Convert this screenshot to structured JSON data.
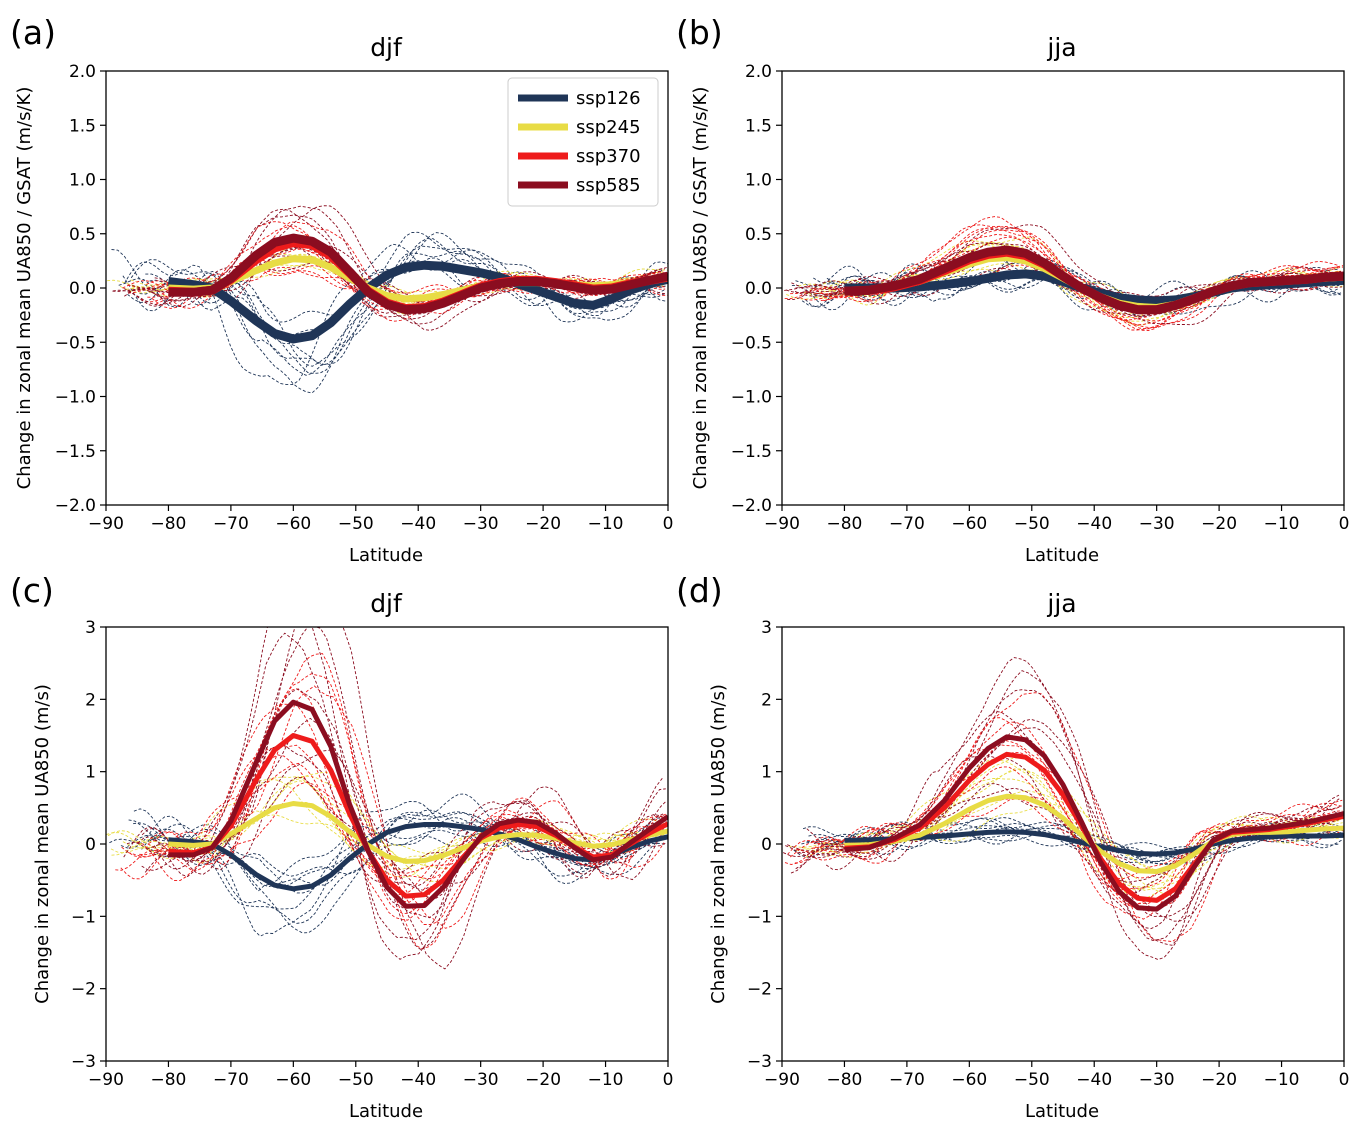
{
  "colors": {
    "ssp126": "#1f3557",
    "ssp245": "#e8dc45",
    "ssp370": "#ee1b1b",
    "ssp585": "#8b0d20"
  },
  "legend": [
    {
      "key": "ssp126",
      "label": "ssp126"
    },
    {
      "key": "ssp245",
      "label": "ssp245"
    },
    {
      "key": "ssp370",
      "label": "ssp370"
    },
    {
      "key": "ssp585",
      "label": "ssp585"
    }
  ],
  "chart_data": [
    {
      "panel": "(a)",
      "type": "line",
      "title": "djf",
      "xlabel": "Latitude",
      "ylabel": "Change in zonal mean UA850 / GSAT (m/s/K)",
      "xlim": [
        -90,
        0
      ],
      "ylim": [
        -2,
        2
      ],
      "xticks": [
        "−90",
        "−80",
        "−70",
        "−60",
        "−50",
        "−40",
        "−30",
        "−20",
        "−10",
        "0"
      ],
      "yticks": [
        "2.0",
        "1.5",
        "1.0",
        "0.5",
        "0.0",
        "−0.5",
        "−1.0",
        "−1.5",
        "−2.0"
      ],
      "legend_position": "top-right",
      "spread": {
        "ssp126": 0.9,
        "ssp245": 0.35,
        "ssp370": 0.5,
        "ssp585": 0.5
      },
      "series": [
        {
          "name": "ssp126",
          "x": [
            -80,
            -76,
            -73,
            -70,
            -66,
            -63,
            -60,
            -57,
            -54,
            -51,
            -48,
            -45,
            -42,
            -39,
            -36,
            -33,
            -30,
            -27,
            -24,
            -21,
            -18,
            -15,
            -12,
            -9,
            -6,
            -3,
            0
          ],
          "y": [
            0.06,
            0.03,
            0.0,
            -0.12,
            -0.3,
            -0.42,
            -0.47,
            -0.44,
            -0.32,
            -0.15,
            0.0,
            0.12,
            0.19,
            0.21,
            0.2,
            0.17,
            0.14,
            0.1,
            0.04,
            -0.02,
            -0.08,
            -0.14,
            -0.16,
            -0.1,
            -0.02,
            0.04,
            0.08
          ]
        },
        {
          "name": "ssp245",
          "x": [
            -80,
            -76,
            -73,
            -70,
            -66,
            -63,
            -60,
            -57,
            -54,
            -51,
            -48,
            -45,
            -42,
            -39,
            -36,
            -33,
            -30,
            -27,
            -24,
            -21,
            -18,
            -15,
            -12,
            -9,
            -6,
            -3,
            0
          ],
          "y": [
            0.0,
            -0.01,
            0.0,
            0.06,
            0.16,
            0.23,
            0.27,
            0.26,
            0.19,
            0.09,
            0.0,
            -0.07,
            -0.1,
            -0.09,
            -0.06,
            -0.02,
            0.02,
            0.04,
            0.05,
            0.05,
            0.04,
            0.03,
            0.02,
            0.03,
            0.05,
            0.07,
            0.09
          ]
        },
        {
          "name": "ssp370",
          "x": [
            -80,
            -76,
            -73,
            -70,
            -66,
            -63,
            -60,
            -57,
            -54,
            -51,
            -48,
            -45,
            -42,
            -39,
            -36,
            -33,
            -30,
            -27,
            -24,
            -21,
            -18,
            -15,
            -12,
            -9,
            -6,
            -3,
            0
          ],
          "y": [
            -0.03,
            -0.04,
            -0.02,
            0.08,
            0.26,
            0.37,
            0.42,
            0.4,
            0.3,
            0.14,
            -0.03,
            -0.14,
            -0.19,
            -0.18,
            -0.13,
            -0.06,
            0.01,
            0.05,
            0.07,
            0.07,
            0.05,
            0.02,
            -0.01,
            0.0,
            0.04,
            0.07,
            0.1
          ]
        },
        {
          "name": "ssp585",
          "x": [
            -80,
            -76,
            -73,
            -70,
            -66,
            -63,
            -60,
            -57,
            -54,
            -51,
            -48,
            -45,
            -42,
            -39,
            -36,
            -33,
            -30,
            -27,
            -24,
            -21,
            -18,
            -15,
            -12,
            -9,
            -6,
            -3,
            0
          ],
          "y": [
            -0.04,
            -0.04,
            -0.02,
            0.09,
            0.3,
            0.42,
            0.46,
            0.43,
            0.33,
            0.15,
            -0.04,
            -0.15,
            -0.2,
            -0.19,
            -0.14,
            -0.07,
            0.0,
            0.04,
            0.06,
            0.06,
            0.04,
            0.01,
            -0.02,
            -0.01,
            0.03,
            0.07,
            0.11
          ]
        }
      ]
    },
    {
      "panel": "(b)",
      "type": "line",
      "title": "jja",
      "xlabel": "Latitude",
      "ylabel": "Change in zonal mean UA850 / GSAT (m/s/K)",
      "xlim": [
        -90,
        0
      ],
      "ylim": [
        -2,
        2
      ],
      "xticks": [
        "−90",
        "−80",
        "−70",
        "−60",
        "−50",
        "−40",
        "−30",
        "−20",
        "−10",
        "0"
      ],
      "yticks": [
        "2.0",
        "1.5",
        "1.0",
        "0.5",
        "0.0",
        "−0.5",
        "−1.0",
        "−1.5",
        "−2.0"
      ],
      "spread": {
        "ssp126": 0.7,
        "ssp245": 0.45,
        "ssp370": 0.35,
        "ssp585": 0.35
      },
      "series": [
        {
          "name": "ssp126",
          "x": [
            -80,
            -76,
            -72,
            -68,
            -64,
            -60,
            -57,
            -54,
            -51,
            -48,
            -45,
            -42,
            -39,
            -36,
            -33,
            -30,
            -27,
            -24,
            -21,
            -18,
            -15,
            -12,
            -9,
            -6,
            -3,
            0
          ],
          "y": [
            0.0,
            0.0,
            0.0,
            0.01,
            0.03,
            0.06,
            0.09,
            0.12,
            0.13,
            0.11,
            0.06,
            0.0,
            -0.05,
            -0.09,
            -0.11,
            -0.12,
            -0.11,
            -0.08,
            -0.04,
            0.0,
            0.02,
            0.03,
            0.04,
            0.05,
            0.06,
            0.07
          ]
        },
        {
          "name": "ssp245",
          "x": [
            -80,
            -76,
            -72,
            -68,
            -64,
            -60,
            -57,
            -54,
            -51,
            -48,
            -45,
            -42,
            -39,
            -36,
            -33,
            -30,
            -27,
            -24,
            -21,
            -18,
            -15,
            -12,
            -9,
            -6,
            -3,
            0
          ],
          "y": [
            -0.03,
            -0.02,
            0.01,
            0.06,
            0.14,
            0.22,
            0.27,
            0.28,
            0.25,
            0.18,
            0.09,
            0.0,
            -0.08,
            -0.14,
            -0.17,
            -0.18,
            -0.15,
            -0.09,
            -0.03,
            0.02,
            0.05,
            0.06,
            0.07,
            0.08,
            0.09,
            0.1
          ]
        },
        {
          "name": "ssp370",
          "x": [
            -80,
            -76,
            -72,
            -68,
            -64,
            -60,
            -57,
            -54,
            -51,
            -48,
            -45,
            -42,
            -39,
            -36,
            -33,
            -30,
            -27,
            -24,
            -21,
            -18,
            -15,
            -12,
            -9,
            -6,
            -3,
            0
          ],
          "y": [
            -0.03,
            -0.02,
            0.01,
            0.07,
            0.16,
            0.26,
            0.31,
            0.33,
            0.3,
            0.22,
            0.11,
            0.0,
            -0.09,
            -0.16,
            -0.2,
            -0.2,
            -0.16,
            -0.1,
            -0.03,
            0.02,
            0.05,
            0.06,
            0.07,
            0.08,
            0.1,
            0.11
          ]
        },
        {
          "name": "ssp585",
          "x": [
            -80,
            -76,
            -72,
            -68,
            -64,
            -60,
            -57,
            -54,
            -51,
            -48,
            -45,
            -42,
            -39,
            -36,
            -33,
            -30,
            -27,
            -24,
            -21,
            -18,
            -15,
            -12,
            -9,
            -6,
            -3,
            0
          ],
          "y": [
            -0.03,
            -0.02,
            0.02,
            0.08,
            0.18,
            0.28,
            0.33,
            0.35,
            0.32,
            0.23,
            0.11,
            0.0,
            -0.09,
            -0.16,
            -0.2,
            -0.2,
            -0.16,
            -0.1,
            -0.03,
            0.02,
            0.05,
            0.06,
            0.07,
            0.08,
            0.1,
            0.11
          ]
        }
      ]
    },
    {
      "panel": "(c)",
      "type": "line",
      "title": "djf",
      "xlabel": "Latitude",
      "ylabel": "Change in zonal mean UA850 (m/s)",
      "xlim": [
        -90,
        0
      ],
      "ylim": [
        -3,
        3
      ],
      "xticks": [
        "−90",
        "−80",
        "−70",
        "−60",
        "−50",
        "−40",
        "−30",
        "−20",
        "−10",
        "0"
      ],
      "yticks": [
        "3",
        "2",
        "1",
        "0",
        "−1",
        "−2",
        "−3"
      ],
      "spread": {
        "ssp126": 1.2,
        "ssp245": 0.7,
        "ssp370": 1.1,
        "ssp585": 1.1
      },
      "series": [
        {
          "name": "ssp126",
          "x": [
            -80,
            -76,
            -73,
            -70,
            -66,
            -63,
            -60,
            -57,
            -54,
            -51,
            -48,
            -45,
            -42,
            -39,
            -36,
            -33,
            -30,
            -27,
            -24,
            -21,
            -18,
            -15,
            -12,
            -9,
            -6,
            -3,
            0
          ],
          "y": [
            0.06,
            0.03,
            0.0,
            -0.15,
            -0.42,
            -0.57,
            -0.62,
            -0.58,
            -0.43,
            -0.2,
            0.0,
            0.16,
            0.24,
            0.27,
            0.27,
            0.24,
            0.2,
            0.14,
            0.06,
            -0.04,
            -0.13,
            -0.2,
            -0.22,
            -0.15,
            -0.05,
            0.04,
            0.1
          ]
        },
        {
          "name": "ssp245",
          "x": [
            -80,
            -76,
            -73,
            -70,
            -66,
            -63,
            -60,
            -57,
            -54,
            -51,
            -48,
            -45,
            -42,
            -39,
            -36,
            -33,
            -30,
            -27,
            -24,
            -21,
            -18,
            -15,
            -12,
            -9,
            -6,
            -3,
            0
          ],
          "y": [
            0.0,
            -0.02,
            0.0,
            0.14,
            0.35,
            0.5,
            0.56,
            0.53,
            0.38,
            0.17,
            -0.02,
            -0.17,
            -0.24,
            -0.23,
            -0.16,
            -0.06,
            0.04,
            0.1,
            0.13,
            0.12,
            0.08,
            0.02,
            -0.03,
            -0.01,
            0.06,
            0.12,
            0.18
          ]
        },
        {
          "name": "ssp370",
          "x": [
            -80,
            -76,
            -73,
            -70,
            -66,
            -63,
            -60,
            -57,
            -54,
            -51,
            -48,
            -45,
            -42,
            -39,
            -36,
            -33,
            -30,
            -27,
            -24,
            -21,
            -18,
            -15,
            -12,
            -9,
            -6,
            -3,
            0
          ],
          "y": [
            -0.1,
            -0.12,
            -0.05,
            0.25,
            0.88,
            1.3,
            1.5,
            1.42,
            1.02,
            0.42,
            -0.1,
            -0.5,
            -0.72,
            -0.7,
            -0.5,
            -0.2,
            0.08,
            0.22,
            0.27,
            0.24,
            0.12,
            -0.04,
            -0.18,
            -0.15,
            0.0,
            0.15,
            0.28
          ]
        },
        {
          "name": "ssp585",
          "x": [
            -80,
            -76,
            -73,
            -70,
            -66,
            -63,
            -60,
            -57,
            -54,
            -51,
            -48,
            -45,
            -42,
            -39,
            -36,
            -33,
            -30,
            -27,
            -24,
            -21,
            -18,
            -15,
            -12,
            -9,
            -6,
            -3,
            0
          ],
          "y": [
            -0.15,
            -0.15,
            -0.05,
            0.32,
            1.12,
            1.7,
            1.96,
            1.86,
            1.35,
            0.55,
            -0.1,
            -0.6,
            -0.86,
            -0.85,
            -0.6,
            -0.24,
            0.1,
            0.28,
            0.33,
            0.3,
            0.15,
            -0.05,
            -0.22,
            -0.18,
            0.02,
            0.2,
            0.38
          ]
        }
      ]
    },
    {
      "panel": "(d)",
      "type": "line",
      "title": "jja",
      "xlabel": "Latitude",
      "ylabel": "Change in zonal mean UA850 (m/s)",
      "xlim": [
        -90,
        0
      ],
      "ylim": [
        -3,
        3
      ],
      "xticks": [
        "−90",
        "−80",
        "−70",
        "−60",
        "−50",
        "−40",
        "−30",
        "−20",
        "−10",
        "0"
      ],
      "yticks": [
        "3",
        "2",
        "1",
        "0",
        "−1",
        "−2",
        "−3"
      ],
      "spread": {
        "ssp126": 0.7,
        "ssp245": 0.6,
        "ssp370": 0.9,
        "ssp585": 0.9
      },
      "series": [
        {
          "name": "ssp126",
          "x": [
            -80,
            -76,
            -72,
            -68,
            -64,
            -60,
            -57,
            -54,
            -51,
            -48,
            -45,
            -42,
            -39,
            -36,
            -33,
            -30,
            -27,
            -24,
            -21,
            -18,
            -15,
            -12,
            -9,
            -6,
            -3,
            0
          ],
          "y": [
            0.05,
            0.06,
            0.07,
            0.09,
            0.11,
            0.14,
            0.16,
            0.17,
            0.16,
            0.13,
            0.08,
            0.02,
            -0.04,
            -0.09,
            -0.13,
            -0.14,
            -0.12,
            -0.07,
            0.0,
            0.05,
            0.08,
            0.1,
            0.11,
            0.11,
            0.11,
            0.12
          ]
        },
        {
          "name": "ssp245",
          "x": [
            -80,
            -76,
            -72,
            -68,
            -64,
            -60,
            -57,
            -54,
            -51,
            -48,
            -45,
            -42,
            -39,
            -36,
            -33,
            -30,
            -27,
            -24,
            -21,
            -18,
            -15,
            -12,
            -9,
            -6,
            -3,
            0
          ],
          "y": [
            -0.02,
            -0.01,
            0.04,
            0.12,
            0.28,
            0.48,
            0.6,
            0.66,
            0.64,
            0.54,
            0.36,
            0.12,
            -0.1,
            -0.27,
            -0.37,
            -0.38,
            -0.3,
            -0.14,
            0.04,
            0.13,
            0.16,
            0.16,
            0.17,
            0.19,
            0.21,
            0.22
          ]
        },
        {
          "name": "ssp370",
          "x": [
            -80,
            -76,
            -72,
            -68,
            -64,
            -60,
            -57,
            -54,
            -51,
            -48,
            -45,
            -42,
            -39,
            -36,
            -33,
            -30,
            -27,
            -24,
            -21,
            -18,
            -15,
            -12,
            -9,
            -6,
            -3,
            0
          ],
          "y": [
            -0.06,
            -0.04,
            0.06,
            0.22,
            0.5,
            0.88,
            1.1,
            1.24,
            1.2,
            1.02,
            0.68,
            0.25,
            -0.2,
            -0.55,
            -0.75,
            -0.78,
            -0.62,
            -0.28,
            0.04,
            0.16,
            0.18,
            0.2,
            0.24,
            0.28,
            0.34,
            0.38
          ]
        },
        {
          "name": "ssp585",
          "x": [
            -80,
            -76,
            -72,
            -68,
            -64,
            -60,
            -57,
            -54,
            -51,
            -48,
            -45,
            -42,
            -39,
            -36,
            -33,
            -30,
            -27,
            -24,
            -21,
            -18,
            -15,
            -12,
            -9,
            -6,
            -3,
            0
          ],
          "y": [
            -0.08,
            -0.05,
            0.08,
            0.26,
            0.6,
            1.05,
            1.32,
            1.48,
            1.44,
            1.22,
            0.82,
            0.3,
            -0.25,
            -0.66,
            -0.88,
            -0.9,
            -0.72,
            -0.32,
            0.05,
            0.18,
            0.2,
            0.22,
            0.26,
            0.3,
            0.36,
            0.42
          ]
        }
      ]
    }
  ]
}
